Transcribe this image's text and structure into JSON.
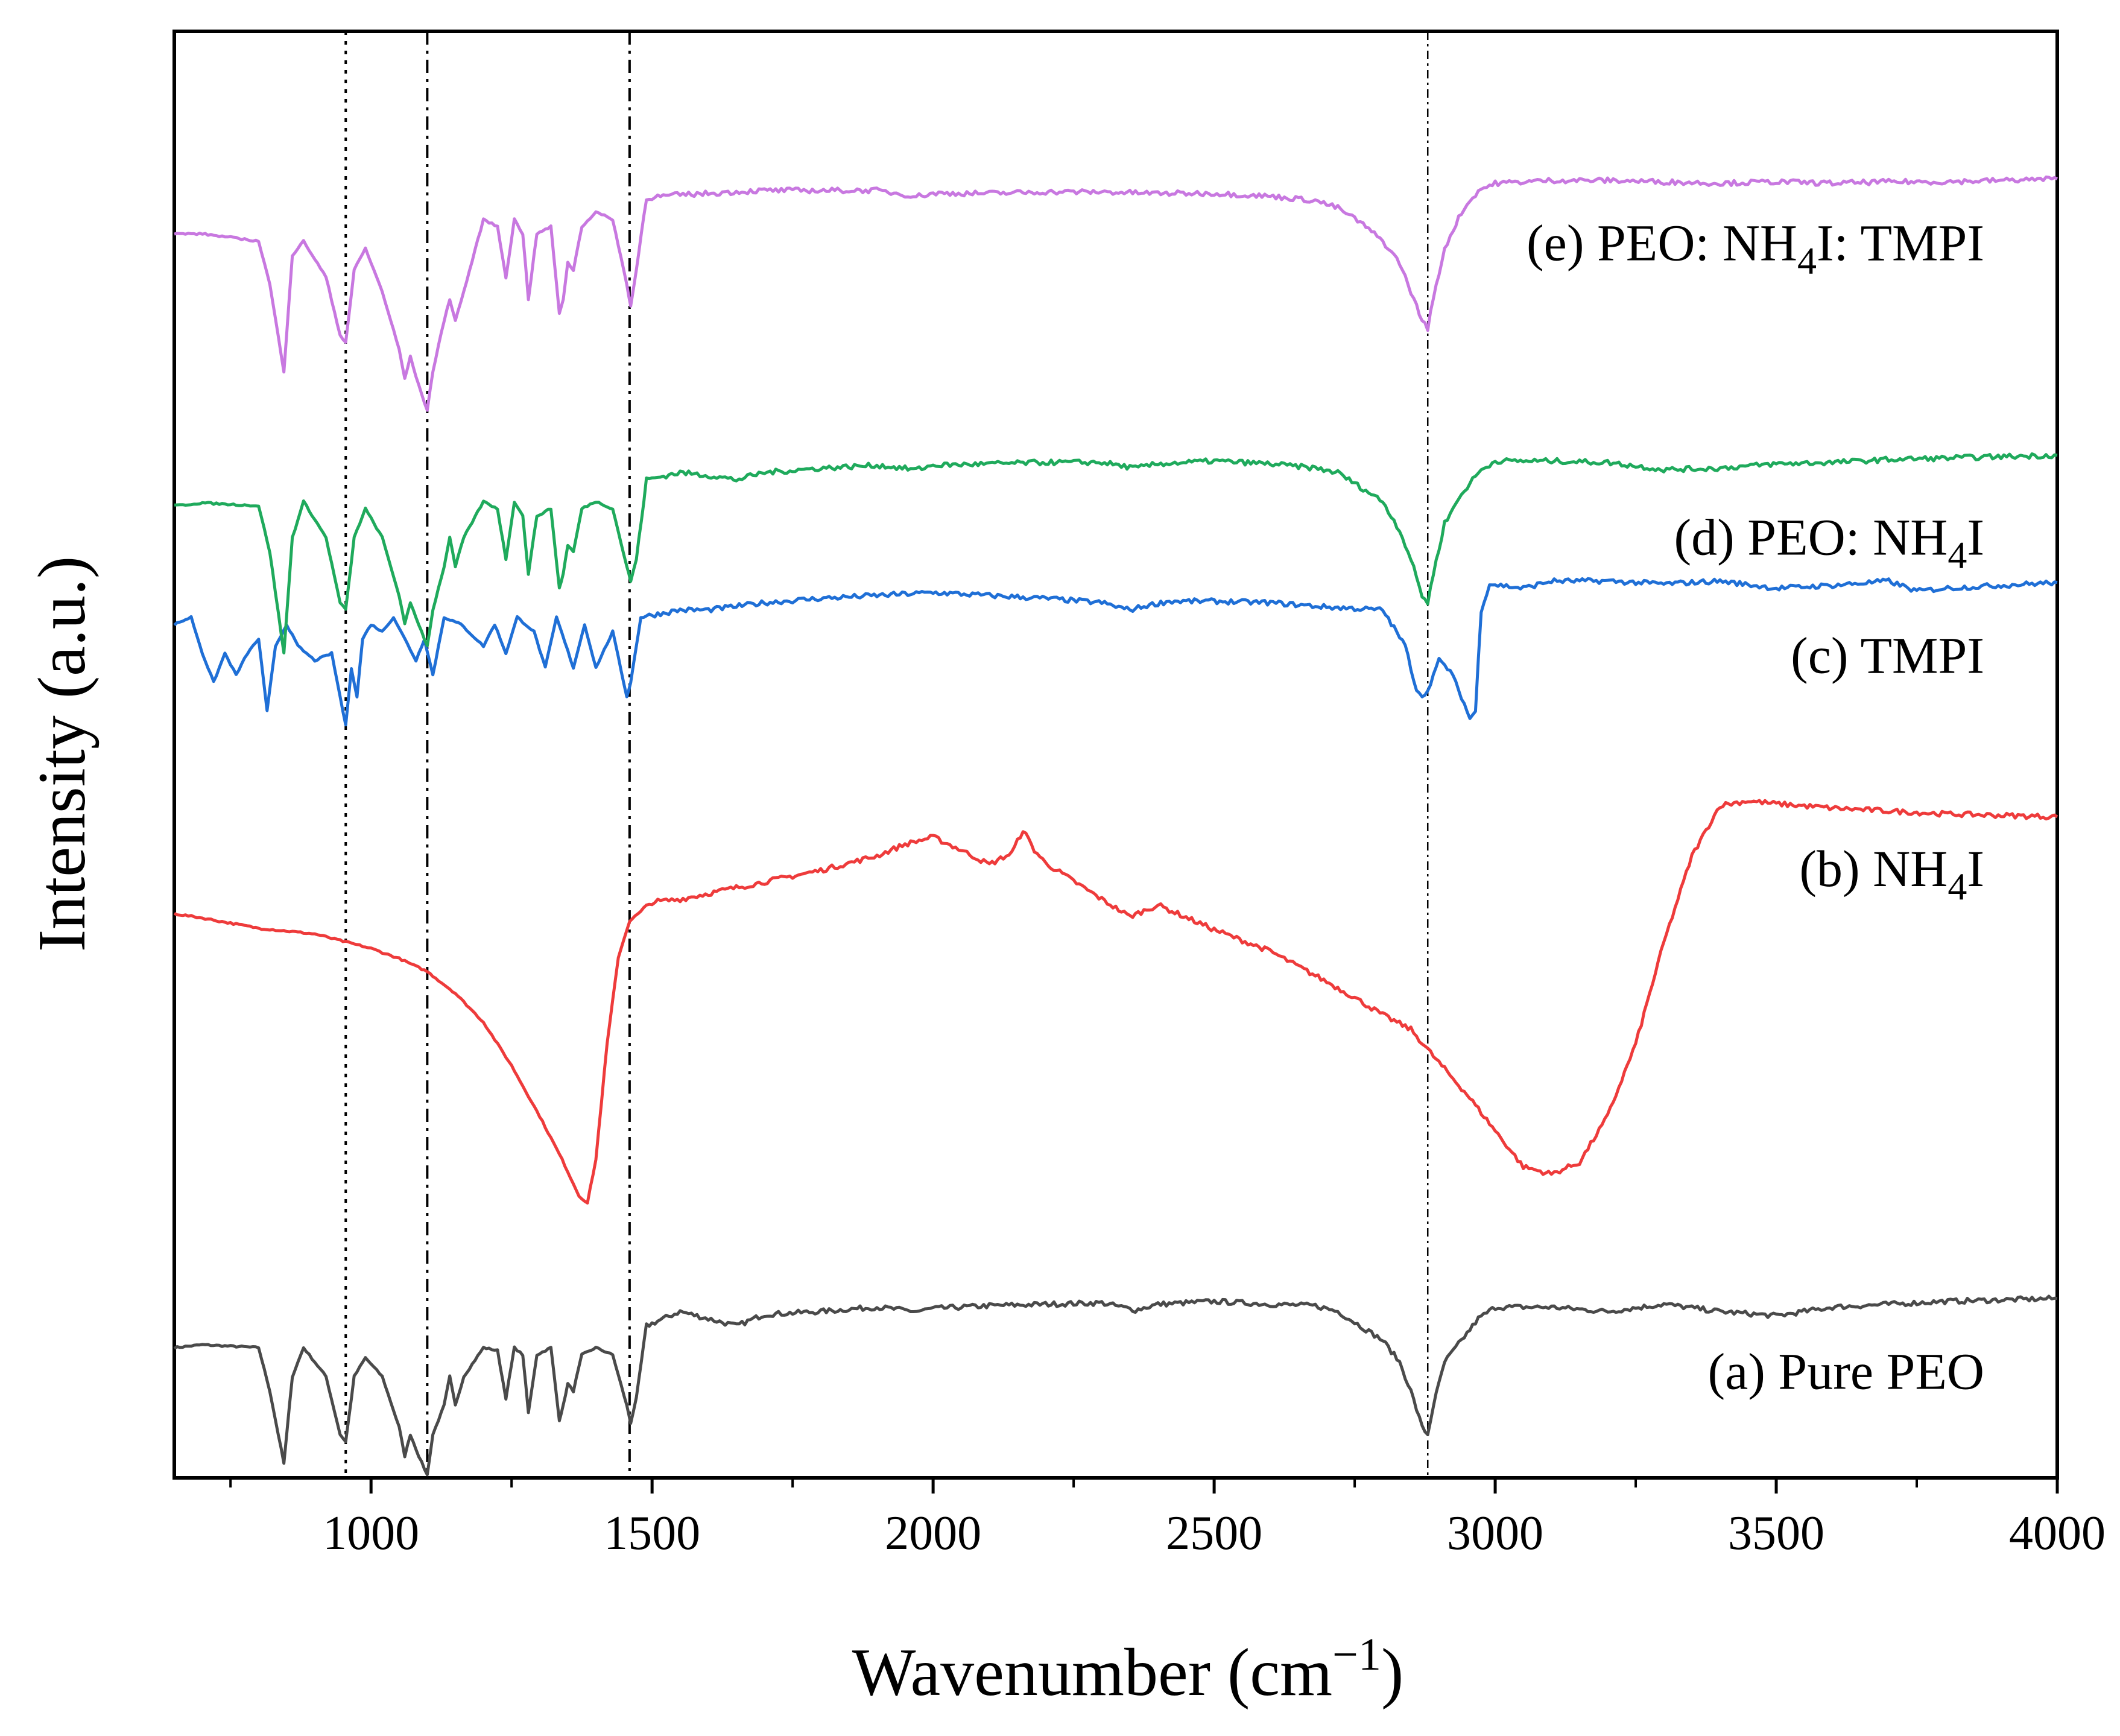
{
  "chart_data": {
    "type": "line",
    "title": "",
    "xlabel": "Wavenumber (cm",
    "xlabel_sup": "−1",
    "xlabel_close": ")",
    "ylabel": "Intensity (a.u.)",
    "xlim": [
      650,
      4000
    ],
    "ylim": [
      0,
      100
    ],
    "y_ticks_shown": false,
    "grid": false,
    "x_ticks": [
      1000,
      1500,
      2000,
      2500,
      3000,
      3500,
      4000
    ],
    "x_tick_labels": [
      "1000",
      "1500",
      "2000",
      "2500",
      "3000",
      "3500",
      "4000"
    ],
    "x_minor_ticks": [
      750,
      1250,
      1750,
      2250,
      2750,
      3250,
      3750
    ],
    "reference_lines": [
      {
        "x": 955,
        "style": "dotted"
      },
      {
        "x": 1100,
        "style": "dash-dot"
      },
      {
        "x": 1460,
        "style": "dash-dot"
      },
      {
        "x": 2880,
        "style": "dash-dot-fine"
      }
    ],
    "series": [
      {
        "name": "(a) Pure PEO",
        "label_prefix": "(a) Pure PEO",
        "label_sub": "",
        "label_suffix": "",
        "color": "#4a4a4a",
        "x": [
          650,
          700,
          800,
          820,
          845,
          860,
          880,
          920,
          945,
          955,
          970,
          990,
          1020,
          1050,
          1060,
          1070,
          1085,
          1100,
          1110,
          1130,
          1140,
          1150,
          1165,
          1200,
          1225,
          1240,
          1255,
          1270,
          1280,
          1295,
          1320,
          1335,
          1342,
          1350,
          1360,
          1375,
          1400,
          1430,
          1455,
          1462,
          1472,
          1490,
          1550,
          1600,
          1650,
          1700,
          1800,
          1900,
          1970,
          2000,
          2100,
          2200,
          2300,
          2360,
          2400,
          2500,
          2600,
          2680,
          2720,
          2740,
          2760,
          2800,
          2830,
          2850,
          2870,
          2880,
          2890,
          2910,
          2940,
          2970,
          3000,
          3100,
          3200,
          3300,
          3400,
          3500,
          3600,
          3700,
          3800,
          3900,
          4000
        ],
        "y": [
          9.0,
          9.2,
          9.0,
          6.0,
          1.0,
          7.0,
          9.0,
          7.0,
          3.0,
          2.5,
          7.0,
          8.3,
          7.0,
          3.5,
          1.5,
          3.0,
          1.5,
          0.2,
          3.0,
          5.0,
          7.0,
          5.0,
          7.0,
          9.0,
          8.8,
          5.5,
          9.0,
          8.5,
          4.5,
          8.5,
          9.0,
          4.0,
          5.0,
          6.5,
          6.0,
          8.5,
          9.0,
          8.5,
          5.0,
          3.8,
          5.5,
          10.5,
          11.5,
          11.0,
          10.5,
          11.3,
          11.5,
          11.8,
          11.5,
          11.7,
          11.9,
          12.0,
          12.1,
          11.6,
          12.0,
          12.2,
          12.0,
          11.9,
          11.5,
          11.0,
          10.5,
          9.5,
          8.0,
          6.0,
          3.5,
          3.0,
          5.0,
          8.0,
          9.5,
          11.0,
          11.8,
          11.8,
          11.5,
          12.0,
          11.5,
          11.2,
          11.8,
          12.0,
          12.2,
          12.3,
          12.4
        ]
      },
      {
        "name": "(b) NH4I",
        "label_prefix": "(b) NH",
        "label_sub": "4",
        "label_suffix": "I",
        "color": "#ee3b3b",
        "x": [
          650,
          700,
          800,
          900,
          950,
          1000,
          1050,
          1100,
          1150,
          1200,
          1250,
          1300,
          1340,
          1370,
          1385,
          1400,
          1420,
          1440,
          1460,
          1500,
          1550,
          1600,
          1700,
          1800,
          1900,
          1950,
          2000,
          2050,
          2100,
          2140,
          2160,
          2180,
          2200,
          2300,
          2350,
          2400,
          2500,
          2600,
          2700,
          2750,
          2800,
          2850,
          2900,
          2950,
          3000,
          3050,
          3100,
          3150,
          3200,
          3250,
          3300,
          3350,
          3400,
          3450,
          3500,
          3600,
          3700,
          3800,
          3900,
          4000
        ],
        "y": [
          39.0,
          38.7,
          38.0,
          37.6,
          37.1,
          36.6,
          35.9,
          35.0,
          33.5,
          31.5,
          28.5,
          25.0,
          22.0,
          19.5,
          19.0,
          22.0,
          30.0,
          36.0,
          38.5,
          39.8,
          40.0,
          40.4,
          41.2,
          42.0,
          43.0,
          43.8,
          44.3,
          43.4,
          42.4,
          43.2,
          44.8,
          43.4,
          42.5,
          40.0,
          38.8,
          39.6,
          37.9,
          36.4,
          34.3,
          33.2,
          32.0,
          31.0,
          28.7,
          26.5,
          24.0,
          21.5,
          21.0,
          21.8,
          25.0,
          30.0,
          37.0,
          43.0,
          46.5,
          46.8,
          46.6,
          46.3,
          46.1,
          45.9,
          45.8,
          45.7
        ]
      },
      {
        "name": "(c) TMPI",
        "label_prefix": "(c) TMPI",
        "label_sub": "",
        "label_suffix": "",
        "color": "#1f6fd6",
        "x": [
          650,
          680,
          700,
          720,
          740,
          760,
          780,
          800,
          815,
          830,
          850,
          870,
          900,
          930,
          945,
          955,
          965,
          975,
          985,
          1000,
          1020,
          1040,
          1060,
          1080,
          1095,
          1110,
          1130,
          1160,
          1200,
          1220,
          1240,
          1260,
          1290,
          1310,
          1330,
          1360,
          1380,
          1400,
          1430,
          1455,
          1462,
          1480,
          1550,
          1600,
          1700,
          1800,
          1900,
          2000,
          2100,
          2200,
          2300,
          2350,
          2380,
          2420,
          2500,
          2600,
          2700,
          2800,
          2840,
          2860,
          2875,
          2890,
          2900,
          2920,
          2940,
          2955,
          2965,
          2975,
          2990,
          3050,
          3100,
          3200,
          3300,
          3400,
          3500,
          3600,
          3700,
          3750,
          3800,
          3900,
          4000
        ],
        "y": [
          59.0,
          59.5,
          57.0,
          55.0,
          57.0,
          55.5,
          57.0,
          58.0,
          53.0,
          57.5,
          59.0,
          57.5,
          56.5,
          57.0,
          54.0,
          52.0,
          56.0,
          54.0,
          58.0,
          59.0,
          58.5,
          59.5,
          58.0,
          56.5,
          58.0,
          55.5,
          59.5,
          59.0,
          57.5,
          59.0,
          57.0,
          59.5,
          58.5,
          56.0,
          59.5,
          56.0,
          59.0,
          56.0,
          58.5,
          54.0,
          55.0,
          59.5,
          60.0,
          60.0,
          60.5,
          60.8,
          61.0,
          61.2,
          61.0,
          60.8,
          60.5,
          60.0,
          60.3,
          60.6,
          60.6,
          60.5,
          60.2,
          60.0,
          57.5,
          54.5,
          54.0,
          55.5,
          56.5,
          55.8,
          54.0,
          52.5,
          53.0,
          60.0,
          61.8,
          61.5,
          62.0,
          62.0,
          61.8,
          62.0,
          61.5,
          61.7,
          62.0,
          61.3,
          61.5,
          61.7,
          61.9
        ]
      },
      {
        "name": "(d) PEO: NH4I",
        "label_prefix": "(d) PEO: NH",
        "label_sub": "4",
        "label_suffix": "I",
        "color": "#1faa5c",
        "x": [
          650,
          700,
          800,
          820,
          845,
          860,
          880,
          920,
          945,
          955,
          970,
          990,
          1020,
          1050,
          1060,
          1070,
          1085,
          1100,
          1110,
          1130,
          1140,
          1150,
          1165,
          1200,
          1225,
          1240,
          1255,
          1270,
          1280,
          1295,
          1320,
          1335,
          1342,
          1350,
          1360,
          1375,
          1400,
          1430,
          1455,
          1462,
          1472,
          1490,
          1550,
          1600,
          1650,
          1700,
          1800,
          1900,
          1970,
          2000,
          2100,
          2200,
          2300,
          2360,
          2400,
          2500,
          2600,
          2680,
          2720,
          2740,
          2760,
          2800,
          2830,
          2850,
          2870,
          2880,
          2890,
          2910,
          2940,
          2970,
          3000,
          3100,
          3200,
          3300,
          3400,
          3500,
          3600,
          3700,
          3800,
          3900,
          4000
        ],
        "y": [
          67.2,
          67.4,
          67.2,
          64.0,
          57.0,
          65.0,
          67.5,
          65.0,
          60.5,
          60.0,
          65.0,
          67.0,
          65.0,
          61.0,
          59.0,
          60.5,
          59.0,
          57.5,
          60.0,
          63.0,
          65.0,
          63.0,
          65.0,
          67.5,
          67.0,
          63.5,
          67.5,
          66.5,
          62.5,
          66.5,
          67.0,
          61.5,
          62.5,
          64.5,
          64.0,
          67.0,
          67.5,
          67.0,
          63.0,
          62.0,
          63.5,
          69.0,
          69.5,
          69.3,
          69.0,
          69.5,
          69.8,
          70.0,
          69.7,
          70.0,
          70.1,
          70.2,
          70.2,
          69.8,
          70.1,
          70.3,
          70.1,
          69.8,
          69.5,
          69.0,
          68.5,
          67.5,
          65.5,
          63.5,
          61.0,
          60.5,
          62.5,
          66.0,
          68.0,
          69.5,
          70.3,
          70.3,
          70.2,
          69.7,
          69.8,
          70.1,
          70.2,
          70.4,
          70.5,
          70.6,
          70.7
        ]
      },
      {
        "name": "(e) PEO: NH4I: TMPI",
        "label_prefix": "(e) PEO: NH",
        "label_sub": "4",
        "label_suffix": "I: TMPI",
        "color": "#c878e0",
        "x": [
          650,
          700,
          800,
          820,
          845,
          860,
          880,
          920,
          945,
          955,
          970,
          990,
          1020,
          1050,
          1060,
          1070,
          1085,
          1100,
          1110,
          1130,
          1140,
          1150,
          1165,
          1200,
          1225,
          1240,
          1255,
          1270,
          1280,
          1295,
          1320,
          1335,
          1342,
          1350,
          1360,
          1375,
          1400,
          1430,
          1455,
          1462,
          1472,
          1490,
          1550,
          1600,
          1700,
          1800,
          1900,
          1970,
          2000,
          2100,
          2200,
          2300,
          2400,
          2500,
          2600,
          2680,
          2720,
          2740,
          2760,
          2800,
          2830,
          2850,
          2870,
          2880,
          2890,
          2910,
          2940,
          2970,
          3000,
          3100,
          3200,
          3300,
          3400,
          3500,
          3600,
          3700,
          3800,
          3900,
          4000
        ],
        "y": [
          86.0,
          86.0,
          85.5,
          82.5,
          76.5,
          84.5,
          85.5,
          83.0,
          79.0,
          78.5,
          83.5,
          85.0,
          82.0,
          78.0,
          76.0,
          77.5,
          75.5,
          73.8,
          76.5,
          80.0,
          81.5,
          80.0,
          82.0,
          87.0,
          86.5,
          83.0,
          87.0,
          86.0,
          81.5,
          86.0,
          86.5,
          80.5,
          81.5,
          84.0,
          83.5,
          86.5,
          87.5,
          87.0,
          82.5,
          81.0,
          83.5,
          88.5,
          88.7,
          88.8,
          89.0,
          89.0,
          89.0,
          88.6,
          88.8,
          88.8,
          88.9,
          88.9,
          88.8,
          88.8,
          88.6,
          88.3,
          87.8,
          87.3,
          86.8,
          85.5,
          84.0,
          82.0,
          80.0,
          79.5,
          81.5,
          85.0,
          87.5,
          89.0,
          89.5,
          89.7,
          89.7,
          89.6,
          89.5,
          89.6,
          89.5,
          89.6,
          89.6,
          89.7,
          89.8
        ]
      }
    ]
  }
}
